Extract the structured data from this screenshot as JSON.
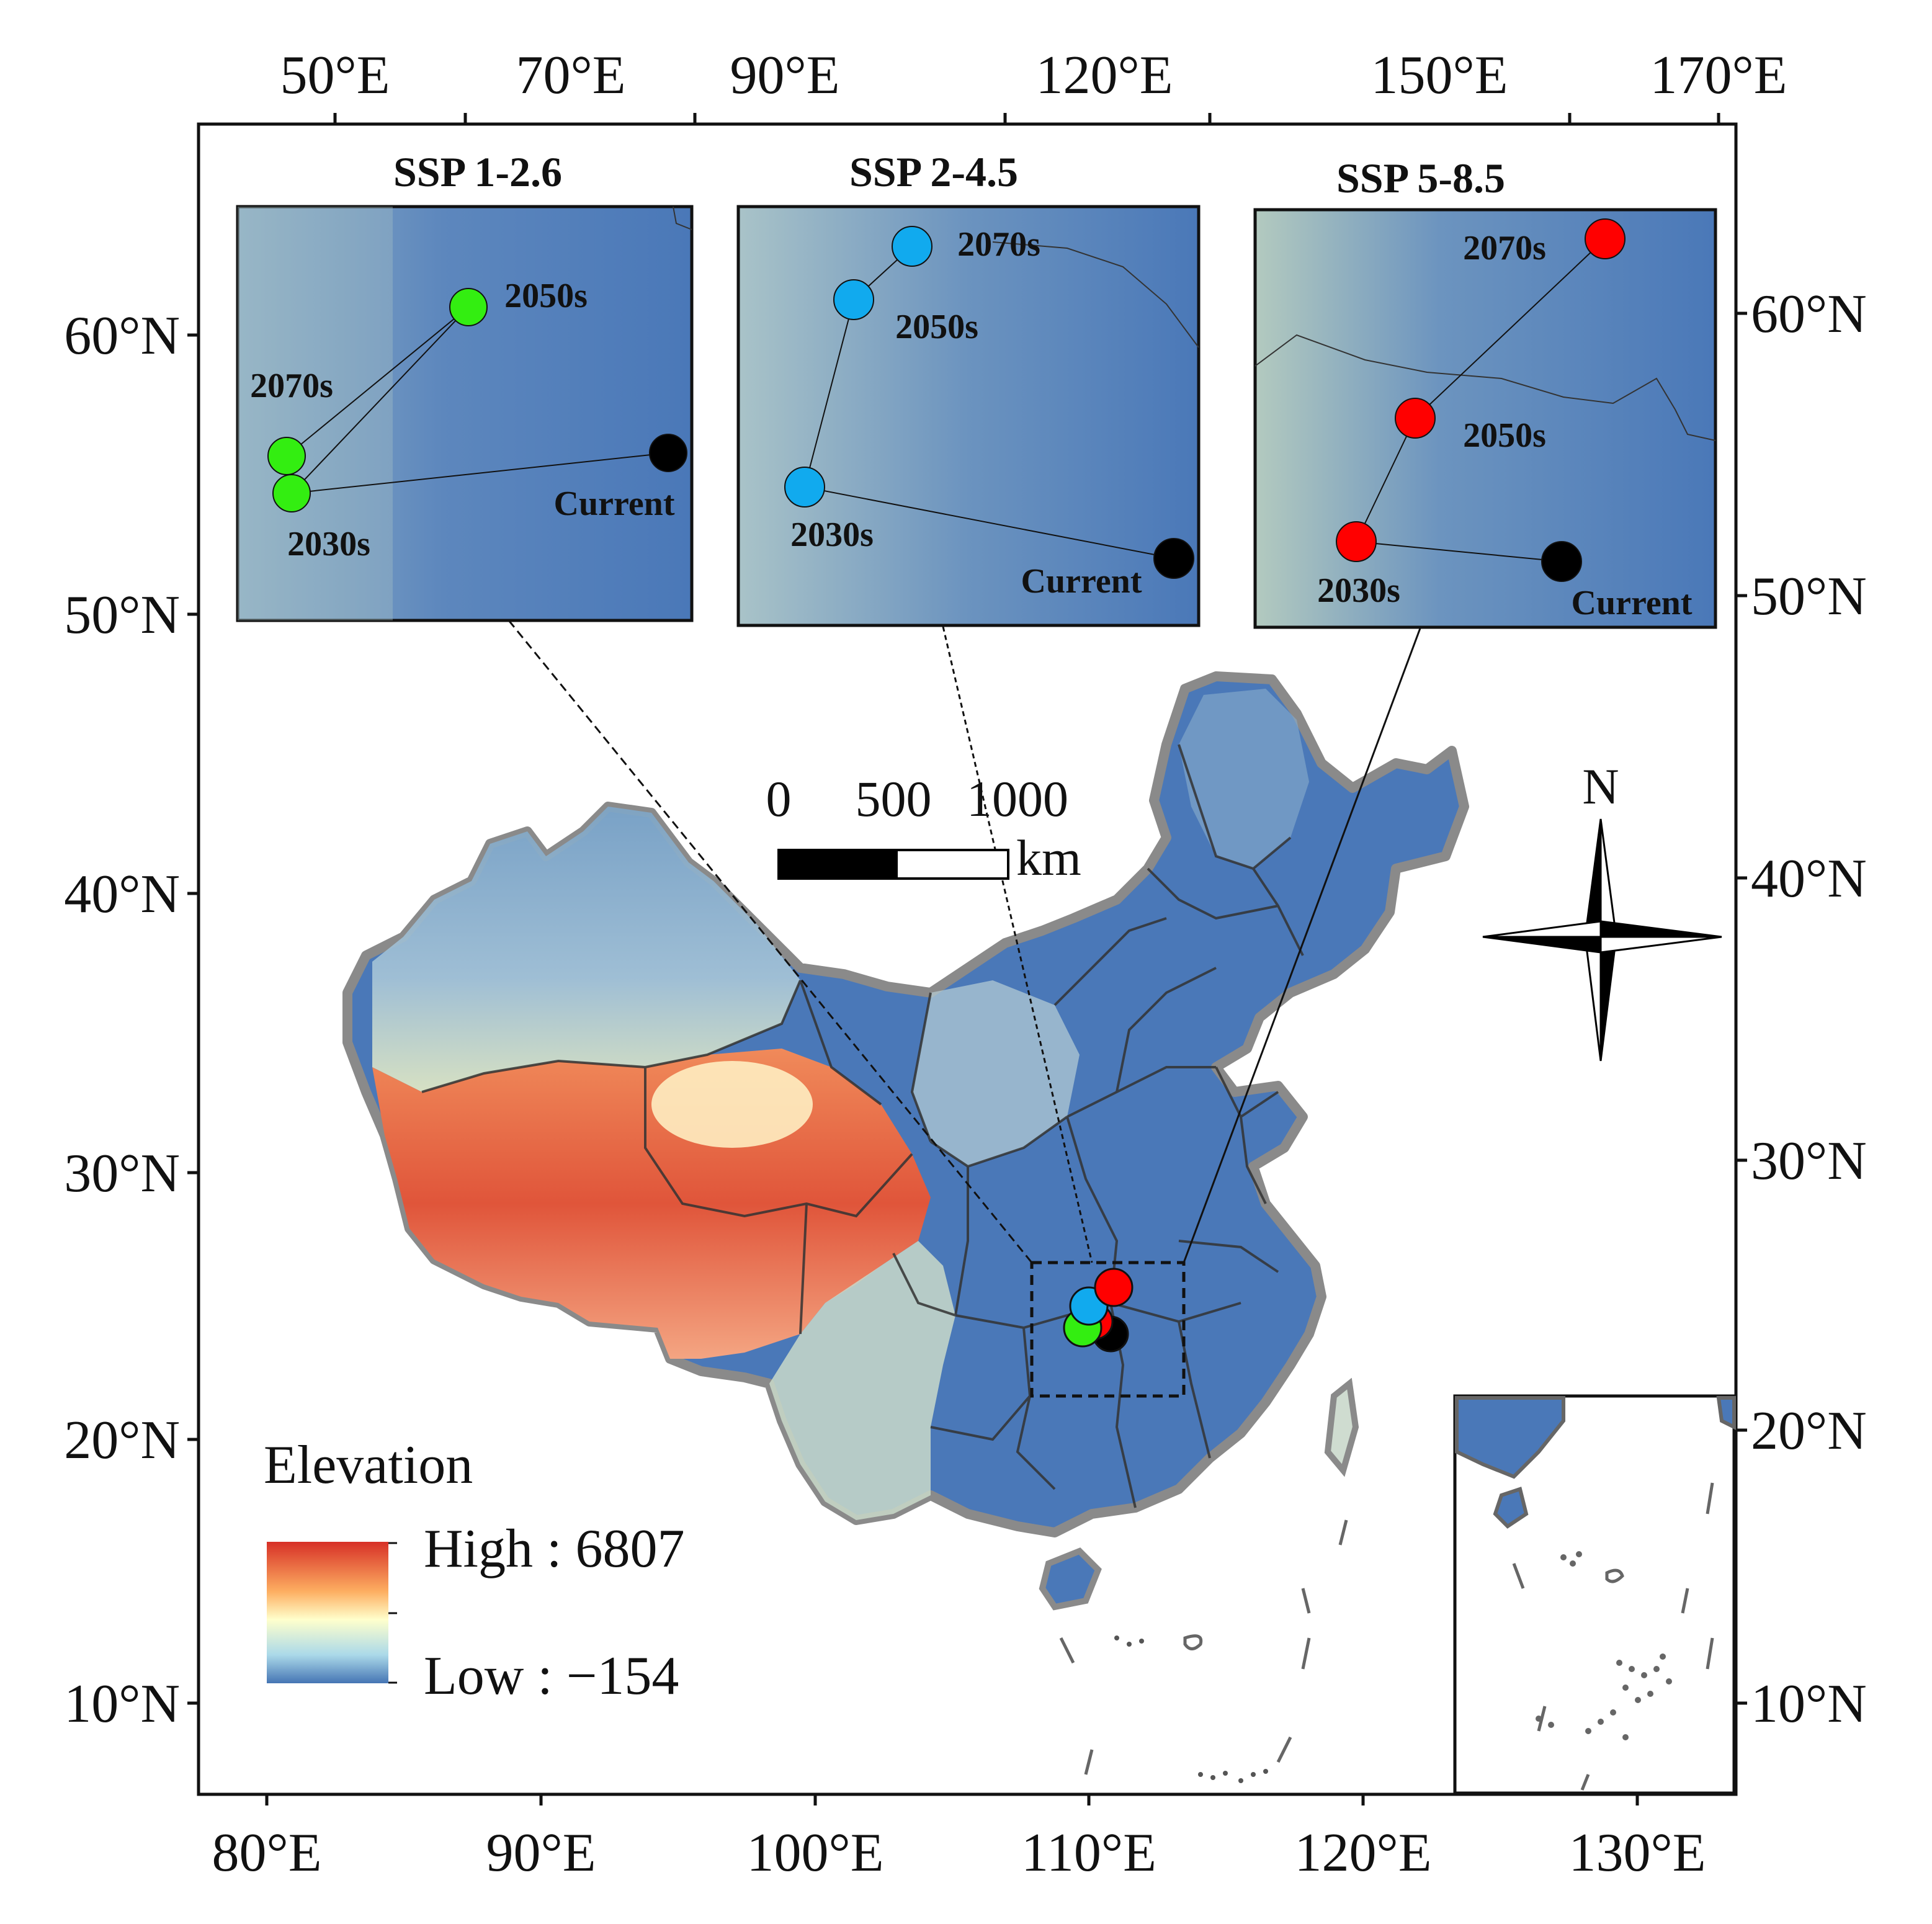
{
  "axes": {
    "top_lon": [
      "50°E",
      "70°E",
      "90°E",
      "120°E",
      "150°E",
      "170°E"
    ],
    "bottom_lon": [
      "80°E",
      "90°E",
      "100°E",
      "110°E",
      "120°E",
      "130°E"
    ],
    "left_lat": [
      "60°N",
      "50°N",
      "40°N",
      "30°N",
      "20°N",
      "10°N"
    ],
    "right_lat": [
      "60°N",
      "50°N",
      "40°N",
      "30°N",
      "20°N",
      "10°N"
    ]
  },
  "insets": [
    {
      "title": "SSP 1-2.6",
      "color": "#33ee11",
      "points": {
        "current": "Current",
        "p2030": "2030s",
        "p2050": "2050s",
        "p2070": "2070s"
      }
    },
    {
      "title": "SSP 2-4.5",
      "color": "#11aaee",
      "points": {
        "current": "Current",
        "p2030": "2030s",
        "p2050": "2050s",
        "p2070": "2070s"
      }
    },
    {
      "title": "SSP 5-8.5",
      "color": "#ff0000",
      "points": {
        "current": "Current",
        "p2030": "2030s",
        "p2050": "2050s",
        "p2070": "2070s"
      }
    }
  ],
  "scale_bar": {
    "t0": "0",
    "t1": "500",
    "t2": "1000",
    "unit": "km"
  },
  "north_arrow": {
    "label": "N"
  },
  "legend": {
    "title": "Elevation",
    "high": "High : 6807",
    "low": "Low : −154",
    "colors": {
      "high": "#d73027",
      "mid": "#ffffcc",
      "low": "#4575b4"
    }
  },
  "colors": {
    "current": "#000000",
    "background_low": "#4a78b8"
  }
}
